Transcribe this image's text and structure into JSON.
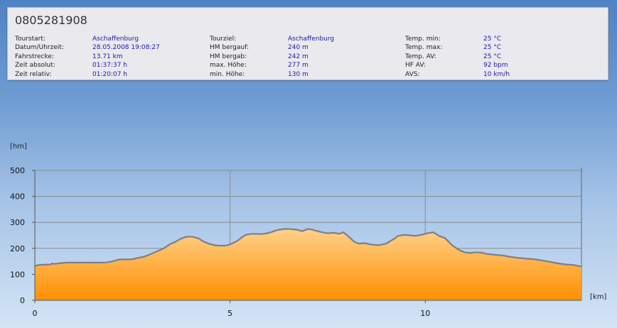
{
  "header": {
    "title": "0805281908",
    "columns": [
      [
        {
          "label": "Tourstart:",
          "value": "Aschaffenburg"
        },
        {
          "label": "Datum/Uhrzeit:",
          "value": "28.05.2008 19:08:27"
        },
        {
          "label": "Fahrstrecke:",
          "value": "13.71 km"
        },
        {
          "label": "Zeit absolut:",
          "value": "01:37:37 h"
        },
        {
          "label": "Zeit relativ:",
          "value": "01:20:07 h"
        }
      ],
      [
        {
          "label": "Tourziel:",
          "value": "Aschaffenburg"
        },
        {
          "label": "HM bergauf:",
          "value": "240 m"
        },
        {
          "label": "HM bergab:",
          "value": "242 m"
        },
        {
          "label": "max. Höhe:",
          "value": "277 m"
        },
        {
          "label": "min. Höhe:",
          "value": "130 m"
        }
      ],
      [
        {
          "label": "Temp. min:",
          "value": "25 °C"
        },
        {
          "label": "Temp. max:",
          "value": "25 °C"
        },
        {
          "label": "Temp. AV:",
          "value": "25 °C"
        },
        {
          "label": "HF AV:",
          "value": "92 bpm"
        },
        {
          "label": "AVS:",
          "value": "10 km/h"
        }
      ]
    ]
  },
  "chart_data": {
    "type": "area",
    "xlabel": "[km]",
    "ylabel": "[hm]",
    "xlim": [
      0,
      14
    ],
    "ylim": [
      0,
      500
    ],
    "xticks": [
      0,
      5,
      10
    ],
    "yticks": [
      0,
      100,
      200,
      300,
      400,
      500
    ],
    "grid": true,
    "colors": {
      "fill_top": "#ffd08a",
      "fill_bottom": "#ff9000",
      "line": "#7a7f8c",
      "grid": "#8c8c8c"
    },
    "x": [
      0,
      0.1,
      0.2,
      0.4,
      0.45,
      0.5,
      0.6,
      0.8,
      1.0,
      1.2,
      1.4,
      1.6,
      1.8,
      2.0,
      2.1,
      2.2,
      2.3,
      2.5,
      2.6,
      2.8,
      3.0,
      3.15,
      3.3,
      3.45,
      3.6,
      3.75,
      3.9,
      4.05,
      4.2,
      4.3,
      4.45,
      4.6,
      4.75,
      4.9,
      5.0,
      5.1,
      5.2,
      5.3,
      5.4,
      5.5,
      5.6,
      5.8,
      5.95,
      6.05,
      6.2,
      6.4,
      6.55,
      6.7,
      6.85,
      7.0,
      7.1,
      7.2,
      7.35,
      7.5,
      7.65,
      7.8,
      7.9,
      8.0,
      8.1,
      8.2,
      8.3,
      8.45,
      8.6,
      8.8,
      9.0,
      9.1,
      9.2,
      9.3,
      9.45,
      9.6,
      9.75,
      9.9,
      10.05,
      10.2,
      10.35,
      10.5,
      10.7,
      10.85,
      11.0,
      11.15,
      11.3,
      11.45,
      11.6,
      11.8,
      12.0,
      12.2,
      12.4,
      12.6,
      12.8,
      13.0,
      13.2,
      13.4,
      13.6,
      13.8,
      14.0
    ],
    "values": [
      132,
      136,
      137,
      138,
      142,
      140,
      142,
      145,
      145,
      145,
      145,
      145,
      145,
      150,
      155,
      158,
      157,
      158,
      162,
      168,
      180,
      190,
      200,
      215,
      225,
      238,
      245,
      244,
      238,
      228,
      218,
      212,
      210,
      211,
      215,
      222,
      230,
      242,
      252,
      255,
      256,
      255,
      258,
      262,
      270,
      275,
      274,
      272,
      266,
      275,
      272,
      268,
      262,
      258,
      260,
      256,
      262,
      250,
      236,
      224,
      218,
      220,
      215,
      212,
      218,
      228,
      236,
      248,
      252,
      250,
      248,
      252,
      258,
      262,
      248,
      240,
      210,
      195,
      185,
      182,
      185,
      183,
      178,
      175,
      172,
      167,
      163,
      160,
      158,
      153,
      148,
      142,
      138,
      136,
      130
    ]
  }
}
